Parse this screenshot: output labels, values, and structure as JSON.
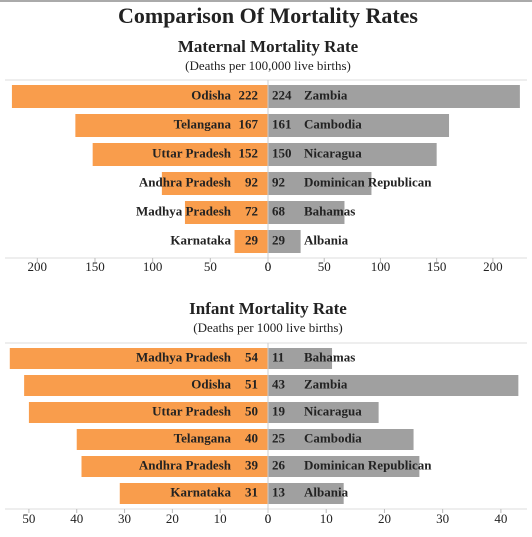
{
  "title": "Comparison Of Mortality Rates",
  "chart_data": [
    {
      "type": "butterfly",
      "title": "Maternal Mortality Rate",
      "subtitle": "(Deaths per 100,000 live births)",
      "series": [
        {
          "categories": [
            "Odisha",
            "Telangana",
            "Uttar Pradesh",
            "Andhra Pradesh",
            "Madhya Pradesh",
            "Karnataka"
          ],
          "values": [
            222,
            167,
            152,
            92,
            72,
            29
          ],
          "color": "#f99d4c",
          "xlim": [
            0,
            228
          ],
          "xticks": [
            200,
            150,
            100,
            50,
            0
          ]
        },
        {
          "categories": [
            "Zambia",
            "Cambodia",
            "Nicaragua",
            "Dominican Republican",
            "Bahamas",
            "Albania"
          ],
          "values": [
            224,
            161,
            150,
            92,
            68,
            29
          ],
          "color": "#a0a0a0",
          "xlim": [
            0,
            233
          ],
          "xticks": [
            0,
            50,
            100,
            150,
            200
          ]
        }
      ]
    },
    {
      "type": "butterfly",
      "title": "Infant Mortality Rate",
      "subtitle": "(Deaths per 1000 live births)",
      "series": [
        {
          "categories": [
            "Madhya Pradesh",
            "Odisha",
            "Uttar Pradesh",
            "Telangana",
            "Andhra Pradesh",
            "Karnataka"
          ],
          "values": [
            54,
            51,
            50,
            40,
            39,
            31
          ],
          "color": "#f99d4c",
          "xlim": [
            0,
            55
          ],
          "xticks": [
            50,
            40,
            30,
            20,
            10,
            0
          ]
        },
        {
          "categories": [
            "Bahamas",
            "Zambia",
            "Nicaragua",
            "Cambodia",
            "Dominican Republican",
            "Albania"
          ],
          "values": [
            11,
            43,
            19,
            25,
            26,
            13
          ],
          "color": "#a0a0a0",
          "xlim": [
            0,
            45
          ],
          "xticks": [
            0,
            10,
            20,
            30,
            40
          ]
        }
      ]
    }
  ]
}
